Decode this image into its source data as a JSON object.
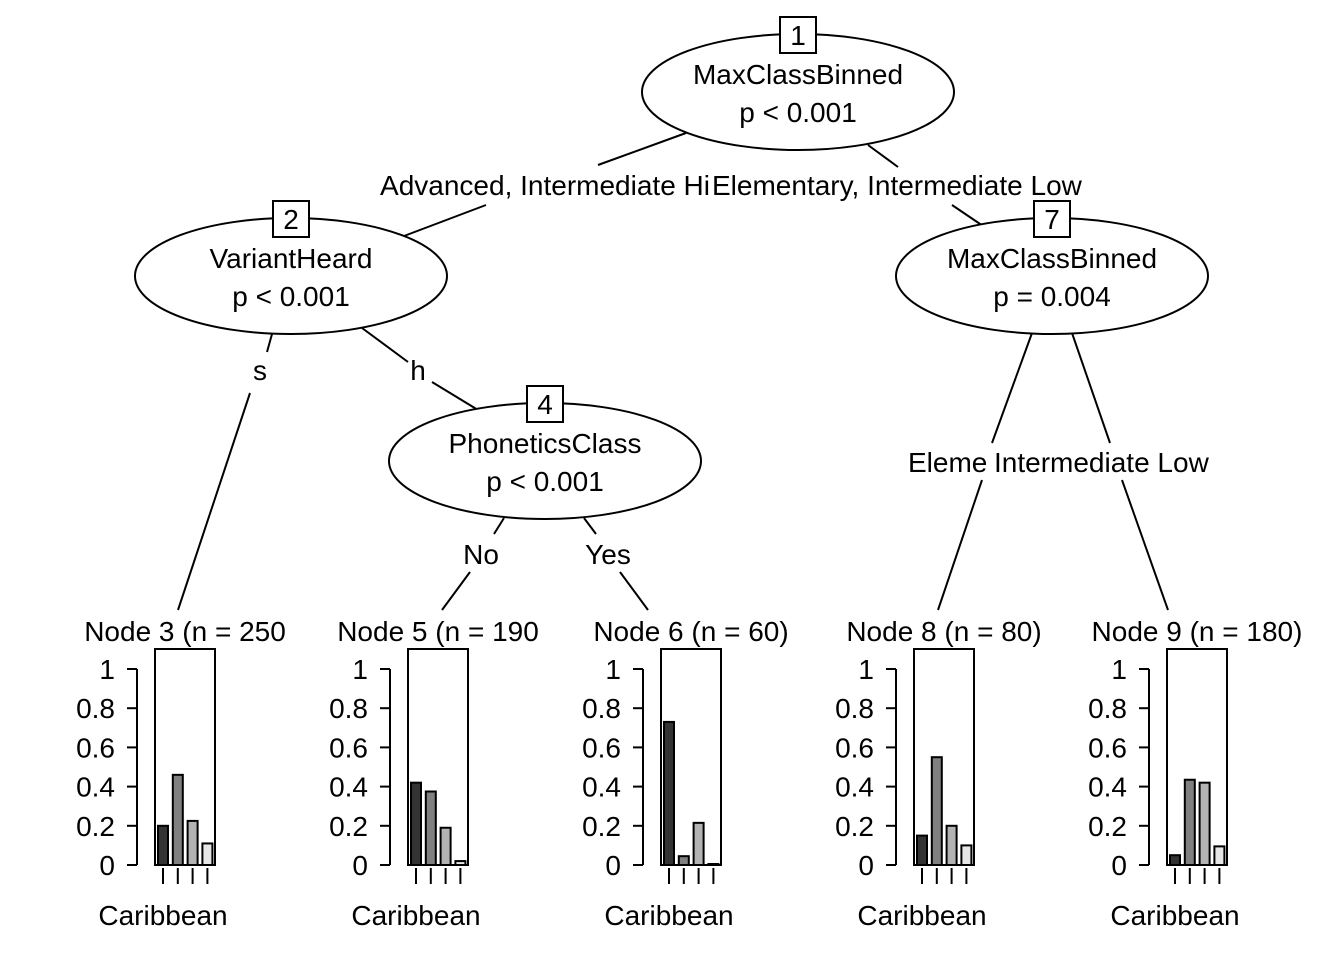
{
  "inner_nodes": [
    {
      "id": "1",
      "variable": "MaxClassBinned",
      "p": "p < 0.001"
    },
    {
      "id": "2",
      "variable": "VariantHeard",
      "p": "p < 0.001"
    },
    {
      "id": "4",
      "variable": "PhoneticsClass",
      "p": "p < 0.001"
    },
    {
      "id": "7",
      "variable": "MaxClassBinned",
      "p": "p = 0.004"
    }
  ],
  "edge_labels": [
    {
      "text": "Advanced, Intermediate Hi"
    },
    {
      "text": "Elementary, Intermediate Low"
    },
    {
      "text": "s"
    },
    {
      "text": "h"
    },
    {
      "text": "No"
    },
    {
      "text": "Yes"
    },
    {
      "text": "Eleme"
    },
    {
      "text": "Intermediate Low"
    }
  ],
  "terminal_nodes": [
    {
      "title": "Node 3 (n = 250",
      "xlabel": "Caribbean",
      "values": [
        0.2,
        0.46,
        0.225,
        0.11
      ]
    },
    {
      "title": "Node 5 (n = 190",
      "xlabel": "Caribbean",
      "values": [
        0.42,
        0.375,
        0.19,
        0.02
      ]
    },
    {
      "title": "Node 6 (n = 60)",
      "xlabel": "Caribbean",
      "values": [
        0.73,
        0.045,
        0.215,
        0.0
      ]
    },
    {
      "title": "Node 8 (n = 80)",
      "xlabel": "Caribbean",
      "values": [
        0.15,
        0.55,
        0.2,
        0.1
      ]
    },
    {
      "title": "Node 9 (n = 180)",
      "xlabel": "Caribbean",
      "values": [
        0.05,
        0.435,
        0.42,
        0.095
      ]
    }
  ],
  "y_ticks": [
    "1",
    "0.8",
    "0.6",
    "0.4",
    "0.2",
    "0"
  ],
  "bar_colors": [
    "#333333",
    "#808080",
    "#b3b3b3",
    "#e6e6e6"
  ]
}
